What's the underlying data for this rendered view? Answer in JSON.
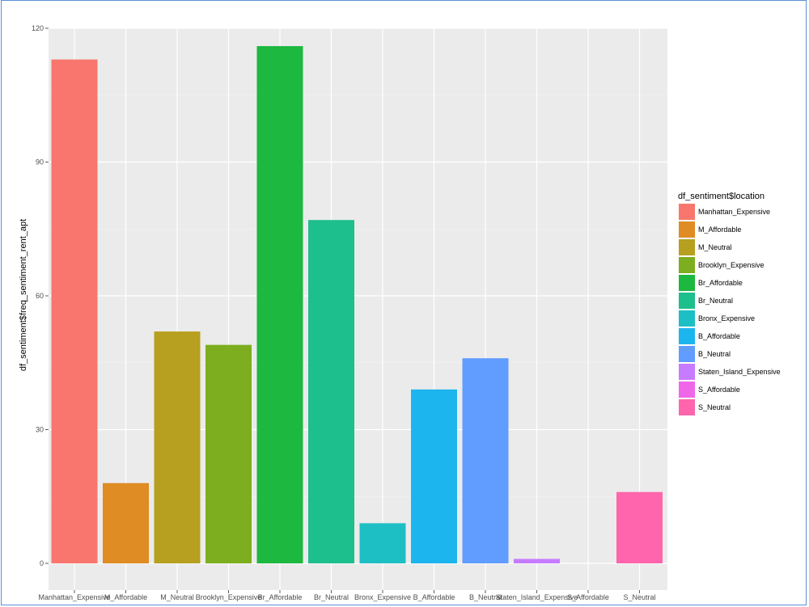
{
  "chart_data": {
    "type": "bar",
    "title": "",
    "xlabel": "",
    "ylabel": "df_sentiment$freq_sentiment_rent_apt",
    "ylim": [
      0,
      120
    ],
    "yticks": [
      0,
      30,
      60,
      90,
      120
    ],
    "grid": true,
    "legend": {
      "title": "df_sentiment$location",
      "placement": "right"
    },
    "categories": [
      "Manhattan_Expensive",
      "M_Affordable",
      "M_Neutral",
      "Brooklyn_Expensive",
      "Br_Affordable",
      "Br_Neutral",
      "Bronx_Expensive",
      "B_Affordable",
      "B_Neutral",
      "Staten_Island_Expensive",
      "S_Affordable",
      "S_Neutral"
    ],
    "values": [
      113,
      18,
      52,
      49,
      116,
      77,
      9,
      39,
      46,
      1,
      0,
      16
    ],
    "colors": [
      "#F8766D",
      "#DE8C23",
      "#B79F1F",
      "#7CAE1F",
      "#1DB83F",
      "#1DBF8C",
      "#1DBFC4",
      "#1DB5EE",
      "#619CFF",
      "#C77CFF",
      "#F066E9",
      "#FF65AC"
    ]
  }
}
